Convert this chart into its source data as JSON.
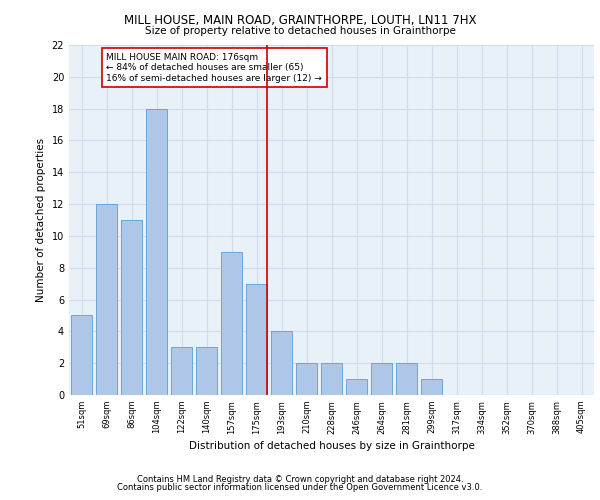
{
  "title1": "MILL HOUSE, MAIN ROAD, GRAINTHORPE, LOUTH, LN11 7HX",
  "title2": "Size of property relative to detached houses in Grainthorpe",
  "xlabel": "Distribution of detached houses by size in Grainthorpe",
  "ylabel": "Number of detached properties",
  "categories": [
    "51sqm",
    "69sqm",
    "86sqm",
    "104sqm",
    "122sqm",
    "140sqm",
    "157sqm",
    "175sqm",
    "193sqm",
    "210sqm",
    "228sqm",
    "246sqm",
    "264sqm",
    "281sqm",
    "299sqm",
    "317sqm",
    "334sqm",
    "352sqm",
    "370sqm",
    "388sqm",
    "405sqm"
  ],
  "values": [
    5,
    12,
    11,
    18,
    3,
    3,
    9,
    7,
    4,
    2,
    2,
    1,
    2,
    2,
    1,
    0,
    0,
    0,
    0,
    0,
    0
  ],
  "bar_color": "#aec6e8",
  "bar_edge_color": "#5a9fd4",
  "highlight_x": "175sqm",
  "highlight_color": "#cc0000",
  "annotation_text": "MILL HOUSE MAIN ROAD: 176sqm\n← 84% of detached houses are smaller (65)\n16% of semi-detached houses are larger (12) →",
  "annotation_box_color": "white",
  "annotation_box_edge_color": "#cc0000",
  "ylim": [
    0,
    22
  ],
  "yticks": [
    0,
    2,
    4,
    6,
    8,
    10,
    12,
    14,
    16,
    18,
    20,
    22
  ],
  "grid_color": "#ccddee",
  "background_color": "#e8f0f8",
  "footer1": "Contains HM Land Registry data © Crown copyright and database right 2024.",
  "footer2": "Contains public sector information licensed under the Open Government Licence v3.0."
}
